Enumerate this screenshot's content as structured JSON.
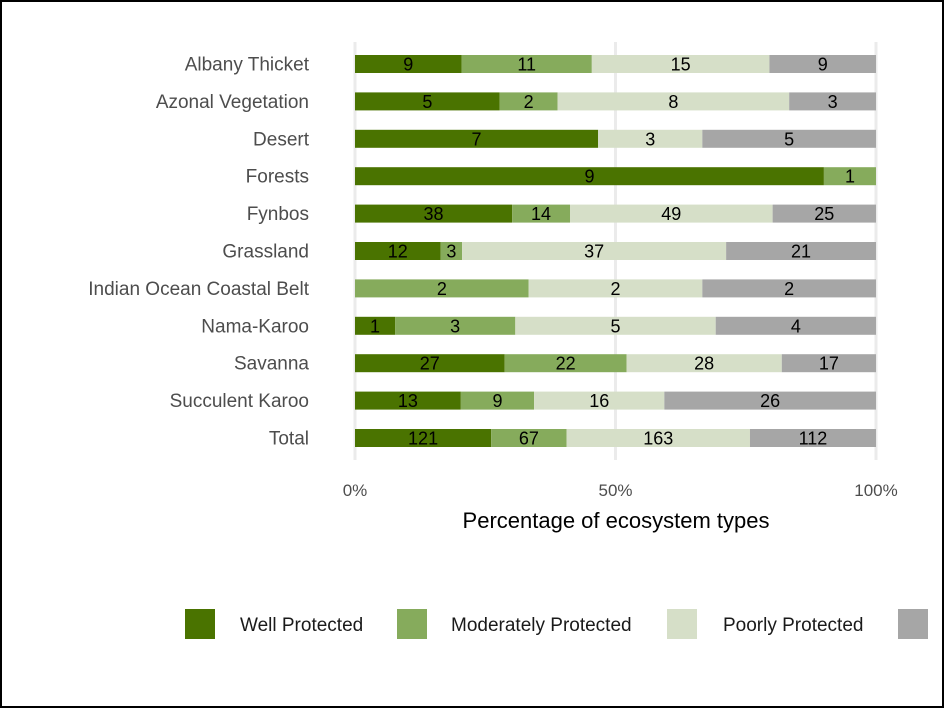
{
  "chart_data": {
    "type": "bar",
    "orientation": "horizontal",
    "stacked": true,
    "normalized": true,
    "categories": [
      "Albany Thicket",
      "Azonal Vegetation",
      "Desert",
      "Forests",
      "Fynbos",
      "Grassland",
      "Indian Ocean Coastal Belt",
      "Nama-Karoo",
      "Savanna",
      "Succulent Karoo",
      "Total"
    ],
    "series": [
      {
        "name": "Well Protected",
        "color": "#4a7300",
        "values": [
          9,
          5,
          7,
          9,
          38,
          12,
          0,
          1,
          27,
          13,
          121
        ]
      },
      {
        "name": "Moderately Protected",
        "color": "#86ab5c",
        "values": [
          11,
          2,
          0,
          1,
          14,
          3,
          2,
          3,
          22,
          9,
          67
        ]
      },
      {
        "name": "Poorly Protected",
        "color": "#d6dfc8",
        "values": [
          15,
          8,
          3,
          0,
          49,
          37,
          2,
          5,
          28,
          16,
          163
        ]
      },
      {
        "name": "",
        "color": "#a6a6a6",
        "values": [
          9,
          3,
          5,
          0,
          25,
          21,
          2,
          4,
          17,
          26,
          112
        ]
      }
    ],
    "xlabel": "Percentage of ecosystem types",
    "ylabel": "",
    "x_ticks": [
      "0%",
      "50%",
      "100%"
    ],
    "xlim": [
      0,
      100
    ],
    "grid": true,
    "legend_position": "bottom"
  }
}
